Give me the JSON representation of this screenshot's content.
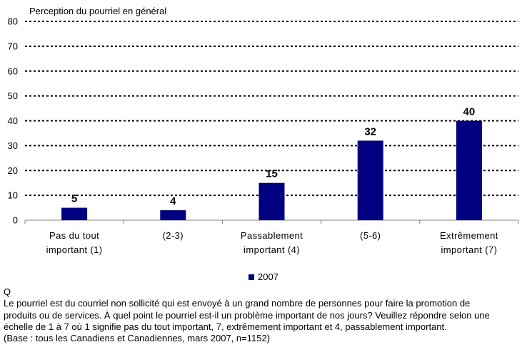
{
  "chart_data": {
    "type": "bar",
    "title": "Perception du pourriel en général",
    "categories": [
      [
        "Pas du tout",
        "important (1)"
      ],
      [
        "(2-3)"
      ],
      [
        "Passablement",
        "important (4)"
      ],
      [
        "(5-6)"
      ],
      [
        "Extrêmement",
        "important (7)"
      ]
    ],
    "series": [
      {
        "name": "2007",
        "values": [
          5,
          4,
          15,
          32,
          40
        ],
        "data_labels": [
          "5",
          "4",
          "15",
          "32",
          "40"
        ]
      }
    ],
    "yticks": [
      "0",
      "10",
      "20",
      "30",
      "40",
      "50",
      "60",
      "70",
      "80"
    ],
    "ylim": [
      0,
      80
    ],
    "grid": "dotted",
    "legend": "bottom-center",
    "colors": {
      "bar": "#000080",
      "grid": "#000000",
      "axis": "#808080"
    }
  },
  "question": {
    "label": "Q",
    "lines": [
      "Le  pourriel  est du courriel non sollicité qui est envoyé à un grand nombre de personnes pour faire la promotion de",
      "produits ou de services. À quel point le pourriel est-il un problème important de nos jours? Veuillez répondre selon une",
      "échelle de 1 à 7 où 1 signifie pas du tout important, 7, extrêmement important et 4, passablement important.",
      "(Base : tous les Canadiens et Canadiennes, mars 2007, n=1152)"
    ]
  }
}
